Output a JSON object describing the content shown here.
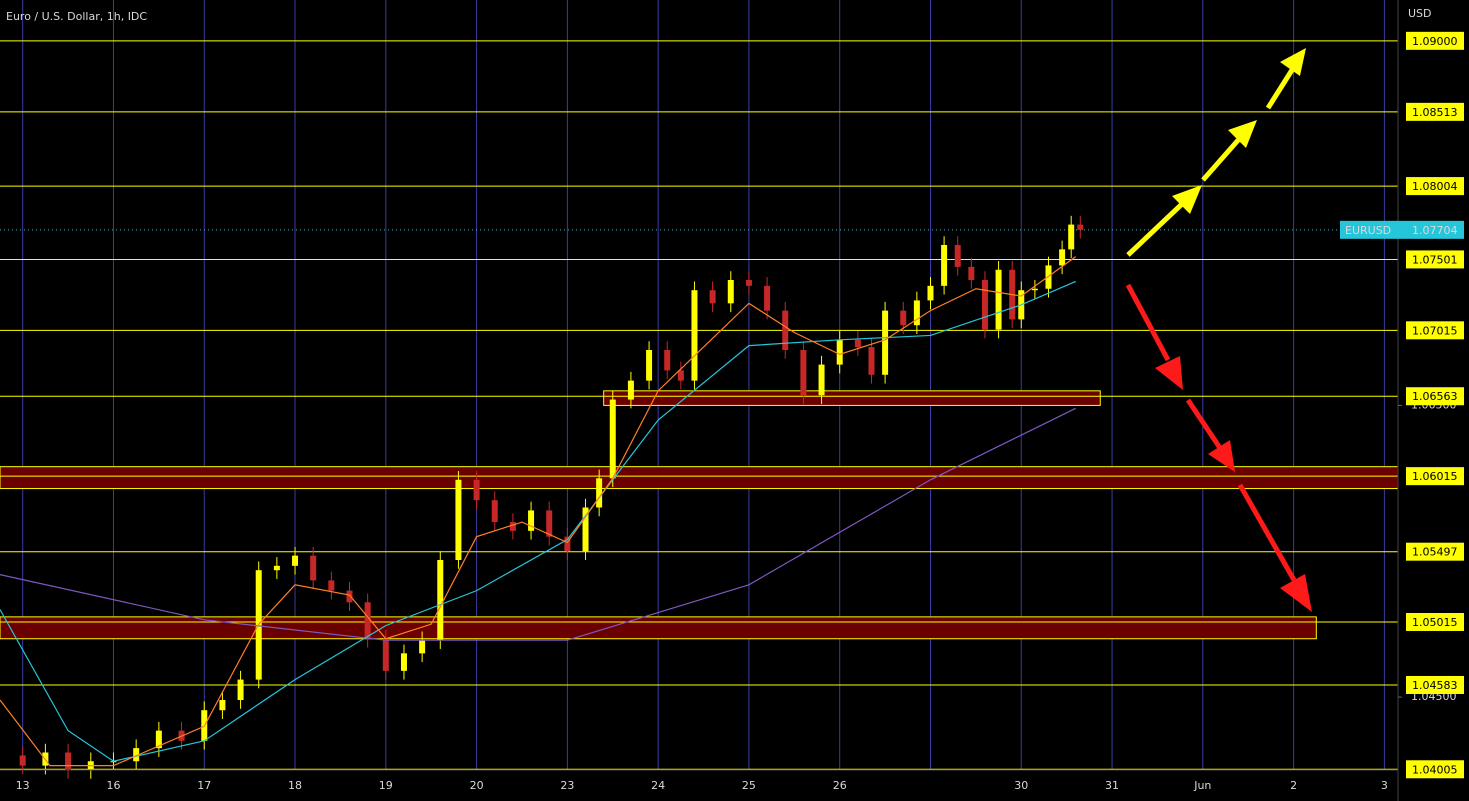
{
  "chart_data": {
    "type": "candlestick",
    "title": "Euro / U.S. Dollar, 1h, IDC",
    "y_axis_label": "USD",
    "xlim": [
      -0.25,
      15.15
    ],
    "ylim": [
      1.04,
      1.0928
    ],
    "xticks": [
      {
        "value": 0,
        "label": "13"
      },
      {
        "value": 1,
        "label": "16"
      },
      {
        "value": 2,
        "label": "17"
      },
      {
        "value": 3,
        "label": "18"
      },
      {
        "value": 4,
        "label": "19"
      },
      {
        "value": 5,
        "label": "20"
      },
      {
        "value": 6,
        "label": "23"
      },
      {
        "value": 7,
        "label": "24"
      },
      {
        "value": 8,
        "label": "25"
      },
      {
        "value": 9,
        "label": "26"
      },
      {
        "value": 10,
        "label": null
      },
      {
        "value": 11,
        "label": "30"
      },
      {
        "value": 12,
        "label": "31"
      },
      {
        "value": 13,
        "label": "Jun"
      },
      {
        "value": 14,
        "label": "2"
      },
      {
        "value": 15,
        "label": "3"
      }
    ],
    "yticks": [
      {
        "value": 1.045,
        "label": "1.04500"
      },
      {
        "value": 1.065,
        "label": "1.06500"
      }
    ],
    "grid": true,
    "up_color": "#ffff00",
    "down_color": "#c62828",
    "x": [
      0.0,
      0.25,
      0.5,
      0.75,
      1.0,
      1.25,
      1.5,
      1.75,
      2.0,
      2.2,
      2.4,
      2.6,
      2.8,
      3.0,
      3.2,
      3.4,
      3.6,
      3.8,
      4.0,
      4.2,
      4.4,
      4.6,
      4.8,
      5.0,
      5.2,
      5.4,
      5.6,
      5.8,
      6.0,
      6.2,
      6.35,
      6.5,
      6.7,
      6.9,
      7.1,
      7.25,
      7.4,
      7.6,
      7.8,
      8.0,
      8.2,
      8.4,
      8.6,
      8.8,
      9.0,
      9.2,
      9.35,
      9.5,
      9.7,
      9.85,
      10.0,
      10.15,
      10.3,
      10.45,
      10.6,
      10.75,
      10.9,
      11.0,
      11.15,
      11.3,
      11.45,
      11.55,
      11.65
    ],
    "open": [
      1.041,
      1.0403,
      1.0412,
      1.04,
      1.0406,
      1.0406,
      1.0415,
      1.0427,
      1.042,
      1.0441,
      1.0448,
      1.0462,
      1.0537,
      1.054,
      1.0547,
      1.053,
      1.0523,
      1.0515,
      1.049,
      1.0468,
      1.048,
      1.0489,
      1.0544,
      1.0599,
      1.0585,
      1.057,
      1.0564,
      1.0578,
      1.056,
      1.055,
      1.058,
      1.06,
      1.0654,
      1.0667,
      1.0688,
      1.0674,
      1.0667,
      1.0729,
      1.072,
      1.0736,
      1.0732,
      1.0715,
      1.0688,
      1.0657,
      1.0678,
      1.0695,
      1.069,
      1.0671,
      1.0715,
      1.0705,
      1.0722,
      1.0732,
      1.076,
      1.0745,
      1.0736,
      1.0702,
      1.0743,
      1.0709,
      1.0729,
      1.073,
      1.0746,
      1.0757,
      1.0774
    ],
    "high": [
      1.0416,
      1.0418,
      1.0418,
      1.0412,
      1.0412,
      1.0421,
      1.0433,
      1.0433,
      1.0447,
      1.0454,
      1.0468,
      1.0543,
      1.0546,
      1.0553,
      1.0553,
      1.0536,
      1.0529,
      1.0521,
      1.0496,
      1.0486,
      1.0495,
      1.055,
      1.0605,
      1.0605,
      1.0591,
      1.0576,
      1.0584,
      1.0584,
      1.0566,
      1.0586,
      1.0606,
      1.066,
      1.0673,
      1.0694,
      1.0694,
      1.068,
      1.0735,
      1.0735,
      1.0742,
      1.0742,
      1.0738,
      1.0721,
      1.0694,
      1.0684,
      1.0701,
      1.0701,
      1.0696,
      1.0721,
      1.0721,
      1.0728,
      1.0738,
      1.0766,
      1.0766,
      1.0751,
      1.0742,
      1.0749,
      1.0749,
      1.0735,
      1.0736,
      1.0752,
      1.0763,
      1.078,
      1.078
    ],
    "low": [
      1.0397,
      1.0397,
      1.0394,
      1.0394,
      1.04,
      1.04,
      1.0409,
      1.0414,
      1.0414,
      1.0435,
      1.0442,
      1.0456,
      1.0531,
      1.0534,
      1.0524,
      1.0517,
      1.0509,
      1.0484,
      1.0462,
      1.0462,
      1.0474,
      1.0483,
      1.0538,
      1.0579,
      1.0564,
      1.0558,
      1.0558,
      1.0554,
      1.0544,
      1.0544,
      1.0574,
      1.0594,
      1.0648,
      1.0661,
      1.0668,
      1.0661,
      1.0661,
      1.0714,
      1.0714,
      1.0726,
      1.0709,
      1.0682,
      1.0651,
      1.0651,
      1.0672,
      1.0684,
      1.0665,
      1.0665,
      1.0699,
      1.0699,
      1.0716,
      1.0726,
      1.0739,
      1.073,
      1.0696,
      1.0696,
      1.0703,
      1.0703,
      1.0723,
      1.0724,
      1.074,
      1.0751,
      1.07644
    ],
    "close": [
      1.0403,
      1.0412,
      1.04,
      1.0406,
      1.0406,
      1.0415,
      1.0427,
      1.042,
      1.0441,
      1.0448,
      1.0462,
      1.0537,
      1.054,
      1.0547,
      1.053,
      1.0523,
      1.0515,
      1.049,
      1.0468,
      1.048,
      1.0489,
      1.0544,
      1.0599,
      1.0585,
      1.057,
      1.0564,
      1.0578,
      1.056,
      1.055,
      1.058,
      1.06,
      1.0654,
      1.0667,
      1.0688,
      1.0674,
      1.0667,
      1.0729,
      1.072,
      1.0736,
      1.0732,
      1.0715,
      1.0688,
      1.0657,
      1.0678,
      1.0695,
      1.069,
      1.0671,
      1.0715,
      1.0705,
      1.0722,
      1.0732,
      1.076,
      1.0745,
      1.0736,
      1.0702,
      1.0743,
      1.0709,
      1.0729,
      1.073,
      1.0746,
      1.0757,
      1.0774,
      1.07704
    ],
    "series": [
      {
        "color": "#7e57c2",
        "x": [
          -0.25,
          2,
          4,
          6,
          8,
          10,
          11.6
        ],
        "values": [
          1.0534,
          1.0503,
          1.0489,
          1.0489,
          1.0527,
          1.0599,
          1.0648
        ]
      },
      {
        "color": "#26c6da",
        "x": [
          -0.25,
          0.5,
          1,
          2,
          3,
          4,
          5,
          6,
          7,
          8,
          9,
          10,
          11,
          11.6
        ],
        "values": [
          1.051,
          1.0427,
          1.0406,
          1.042,
          1.0462,
          1.0499,
          1.0523,
          1.0558,
          1.064,
          1.0691,
          1.0695,
          1.0698,
          1.0719,
          1.0735
        ]
      },
      {
        "color": "#ff7f27",
        "x": [
          -0.25,
          0.3,
          1,
          2,
          2.6,
          3,
          3.6,
          4,
          4.5,
          5,
          5.5,
          6,
          6.5,
          7,
          7.5,
          8,
          8.5,
          9,
          9.5,
          10,
          10.5,
          11,
          11.6
        ],
        "values": [
          1.0448,
          1.0403,
          1.0403,
          1.043,
          1.05,
          1.0527,
          1.052,
          1.049,
          1.05,
          1.056,
          1.057,
          1.0556,
          1.06,
          1.066,
          1.069,
          1.072,
          1.07,
          1.0685,
          1.0695,
          1.0715,
          1.073,
          1.0725,
          1.0752
        ]
      }
    ],
    "levels": [
      {
        "value": 1.09,
        "label": "1.09000"
      },
      {
        "value": 1.08513,
        "label": "1.08513"
      },
      {
        "value": 1.08004,
        "label": "1.08004"
      },
      {
        "value": 1.07501,
        "label": "1.07501"
      },
      {
        "value": 1.07015,
        "label": "1.07015"
      },
      {
        "value": 1.06563,
        "label": "1.06563"
      },
      {
        "value": 1.06015,
        "label": "1.06015"
      },
      {
        "value": 1.05497,
        "label": "1.05497"
      },
      {
        "value": 1.05015,
        "label": "1.05015"
      },
      {
        "value": 1.04583,
        "label": "1.04583"
      },
      {
        "value": 1.04005,
        "label": "1.04005"
      }
    ],
    "zones": [
      {
        "xlim": [
          6.4,
          11.87
        ],
        "ylim": [
          1.065,
          1.066
        ]
      },
      {
        "xlim": [
          -0.25,
          15.15
        ],
        "ylim": [
          1.0593,
          1.0608
        ]
      },
      {
        "xlim": [
          -0.25,
          14.25
        ],
        "ylim": [
          1.049,
          1.0505
        ]
      }
    ],
    "last": {
      "name": "EURUSD",
      "value": 1.07704,
      "label": "1.07704"
    }
  }
}
